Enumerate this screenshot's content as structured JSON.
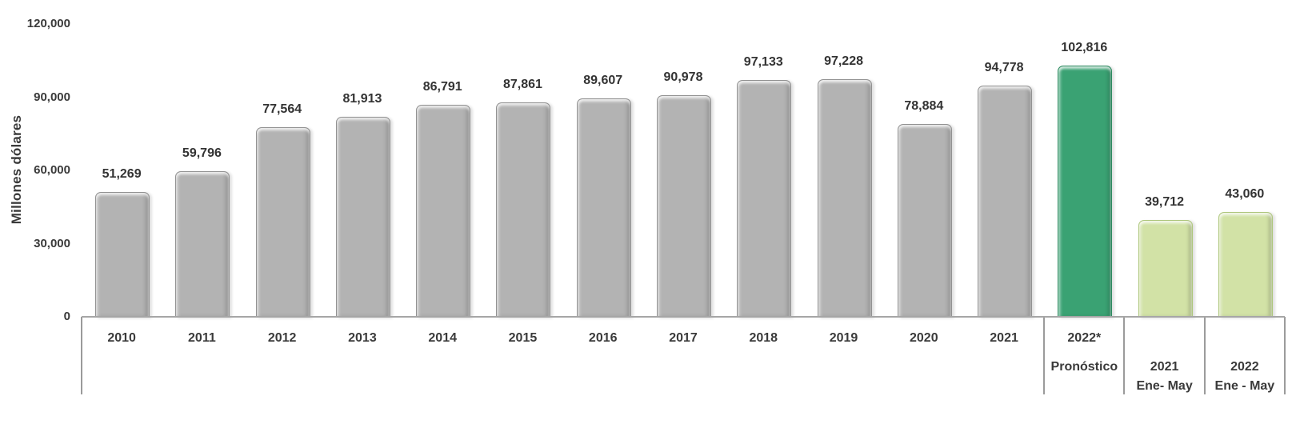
{
  "chart_data": {
    "type": "bar",
    "title": "",
    "xlabel": "",
    "ylabel": "Millones dólares",
    "ylim": [
      0,
      120000
    ],
    "grid": false,
    "legend": null,
    "y_ticks": [
      {
        "value": 0,
        "label": "0"
      },
      {
        "value": 30000,
        "label": "30,000"
      },
      {
        "value": 60000,
        "label": "60,000"
      },
      {
        "value": 90000,
        "label": "90,000"
      },
      {
        "value": 120000,
        "label": "120,000"
      }
    ],
    "categories": [
      {
        "label": "2010",
        "value": 51269,
        "value_label": "51,269",
        "color": "gray"
      },
      {
        "label": "2011",
        "value": 59796,
        "value_label": "59,796",
        "color": "gray"
      },
      {
        "label": "2012",
        "value": 77564,
        "value_label": "77,564",
        "color": "gray"
      },
      {
        "label": "2013",
        "value": 81913,
        "value_label": "81,913",
        "color": "gray"
      },
      {
        "label": "2014",
        "value": 86791,
        "value_label": "86,791",
        "color": "gray"
      },
      {
        "label": "2015",
        "value": 87861,
        "value_label": "87,861",
        "color": "gray"
      },
      {
        "label": "2016",
        "value": 89607,
        "value_label": "89,607",
        "color": "gray"
      },
      {
        "label": "2017",
        "value": 90978,
        "value_label": "90,978",
        "color": "gray"
      },
      {
        "label": "2018",
        "value": 97133,
        "value_label": "97,133",
        "color": "gray"
      },
      {
        "label": "2019",
        "value": 97228,
        "value_label": "97,228",
        "color": "gray"
      },
      {
        "label": "2020",
        "value": 78884,
        "value_label": "78,884",
        "color": "gray"
      },
      {
        "label": "2021",
        "value": 94778,
        "value_label": "94,778",
        "color": "gray"
      },
      {
        "label": "2022*",
        "label2": "Pronóstico",
        "value": 102816,
        "value_label": "102,816",
        "color": "green",
        "label_low": false
      },
      {
        "label": "2021",
        "label2": "Ene- May",
        "value": 39712,
        "value_label": "39,712",
        "color": "light_green",
        "label_low": true
      },
      {
        "label": "2022",
        "label2": "Ene - May",
        "value": 43060,
        "value_label": "43,060",
        "color": "light_green",
        "label_low": true
      }
    ],
    "group_separators_before": [
      12,
      13,
      14
    ]
  },
  "colors": {
    "bar_gray": "#b3b3b3",
    "bar_gray_border": "#929292",
    "bar_green": "#3aa273",
    "bar_green_border": "#2d8a60",
    "bar_light_green": "#d2e2a6",
    "bar_light_green_border": "#aec77d",
    "axis_line": "#a6a6a6",
    "separator_line": "#9b9b9b",
    "text": "#3a3a3a"
  }
}
